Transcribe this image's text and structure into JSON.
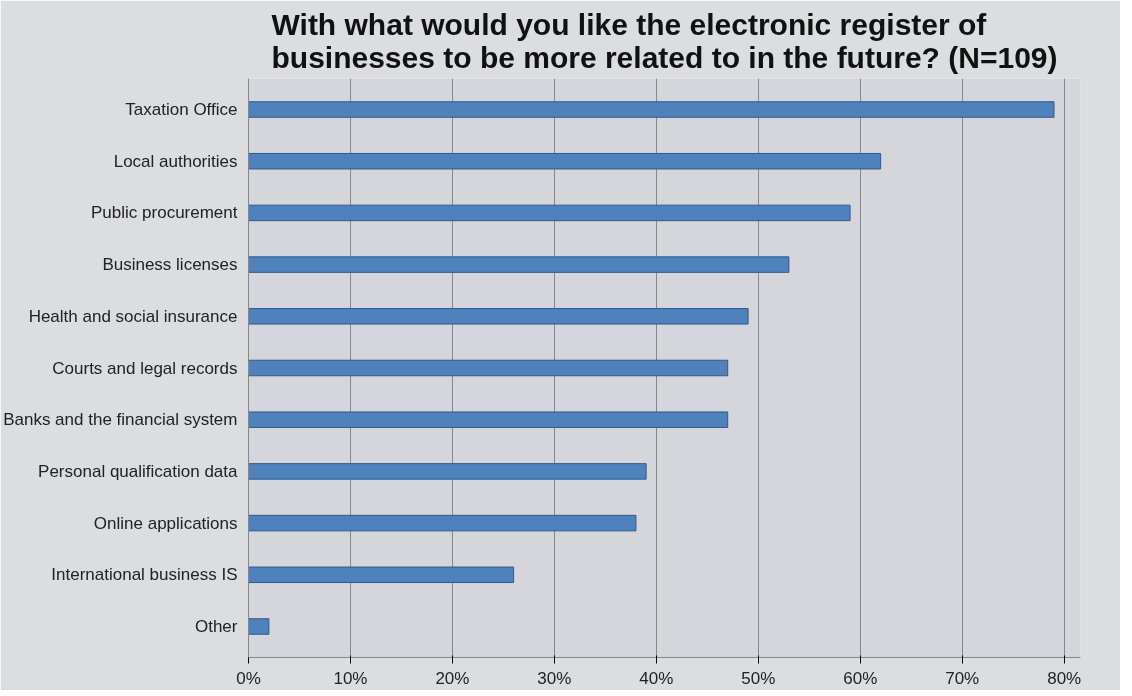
{
  "chart_data": {
    "type": "bar",
    "orientation": "horizontal",
    "title": "With what would you like the electronic register of\nbusinesses to be more related to in the future? (N=109)",
    "categories": [
      "Taxation Office",
      "Local authorities",
      "Public procurement",
      "Business licenses",
      "Health and social insurance",
      "Courts and legal records",
      "Banks and the financial system",
      "Personal qualification data",
      "Online applications",
      "International business IS",
      "Other"
    ],
    "values": [
      79,
      62,
      59,
      53,
      49,
      47,
      47,
      39,
      38,
      26,
      2
    ],
    "color": "#4f81bd",
    "xlim": [
      0,
      80
    ],
    "xticks": [
      {
        "value": 0,
        "label": "0%"
      },
      {
        "value": 10,
        "label": "10%"
      },
      {
        "value": 20,
        "label": "20%"
      },
      {
        "value": 30,
        "label": "30%"
      },
      {
        "value": 40,
        "label": "40%"
      },
      {
        "value": 50,
        "label": "50%"
      },
      {
        "value": 60,
        "label": "60%"
      },
      {
        "value": 70,
        "label": "70%"
      },
      {
        "value": 80,
        "label": "80%"
      }
    ],
    "grid": "x"
  }
}
